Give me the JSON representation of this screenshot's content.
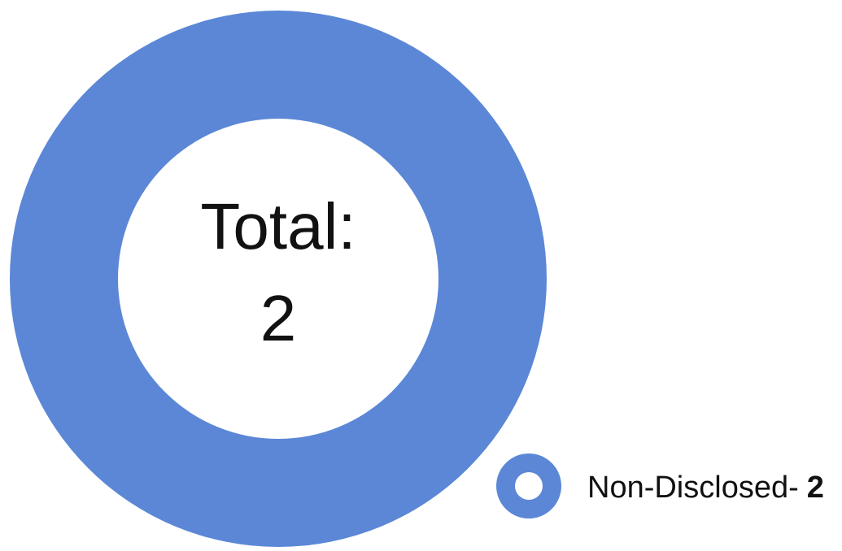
{
  "chart_data": {
    "type": "donut",
    "center_label": "Total:",
    "total": 2,
    "categories": [
      "Non-Disclosed-"
    ],
    "values": [
      2
    ],
    "colors": [
      "#5b87d6"
    ]
  }
}
